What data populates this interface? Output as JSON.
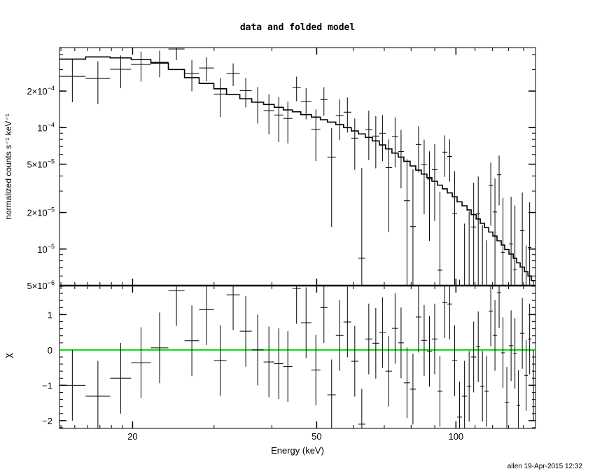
{
  "chart_data": {
    "title": "data and folded model",
    "xlabel": "Energy (keV)",
    "top_panel": {
      "type": "scatter",
      "ylabel": "normalized counts s⁻¹ keV⁻¹",
      "yscale": "log",
      "ylim": [
        5e-06,
        0.000456
      ],
      "yticks": [
        {
          "value": 0.0002,
          "base": "2×10",
          "exp": "−4"
        },
        {
          "value": 0.0001,
          "base": "10",
          "exp": "−4"
        },
        {
          "value": 5e-05,
          "base": "5×10",
          "exp": "−5"
        },
        {
          "value": 2e-05,
          "base": "2×10",
          "exp": "−5"
        },
        {
          "value": 1e-05,
          "base": "10",
          "exp": "−5"
        },
        {
          "value": 5e-06,
          "base": "5×10",
          "exp": "−6"
        }
      ]
    },
    "bottom_panel": {
      "type": "scatter",
      "ylabel": "χ",
      "ylim": [
        -2.22,
        1.82
      ],
      "yticks": [
        {
          "value": 1,
          "label": "1"
        },
        {
          "value": 0,
          "label": "0"
        },
        {
          "value": -1,
          "label": "−1"
        },
        {
          "value": -2,
          "label": "−2"
        }
      ],
      "zero_line_color": "#00e000"
    },
    "xscale": "log",
    "xlim": [
      13.9,
      148.6
    ],
    "xticks": [
      {
        "value": 20,
        "label": "20"
      },
      {
        "value": 50,
        "label": "50"
      },
      {
        "value": 100,
        "label": "100"
      }
    ],
    "energy_edges": [
      13.87,
      15.83,
      17.89,
      19.86,
      21.9,
      23.9,
      25.9,
      27.86,
      29.97,
      31.92,
      34.1,
      36.19,
      38.4,
      40.47,
      42.34,
      44.31,
      46.2,
      48.69,
      50.94,
      52.75,
      55.0,
      57.16,
      59.39,
      61.51,
      63.69,
      65.95,
      68.29,
      70.47,
      72.72,
      75.04,
      77.17,
      79.62,
      81.87,
      84.19,
      86.57,
      88.72,
      91.23,
      93.49,
      95.8,
      98.18,
      100.6,
      103.1,
      105.7,
      107.9,
      110.6,
      112.9,
      115.3,
      117.7,
      120.2,
      122.7,
      125.3,
      127.5,
      130.2,
      133.0,
      135.3,
      137.7,
      140.6,
      143.1,
      145.6,
      148.6
    ],
    "data": [
      0.000264,
      0.000254,
      0.000302,
      0.000331,
      0.000345,
      0.000444,
      0.000279,
      0.00031,
      0.000189,
      0.000279,
      0.000202,
      0.000162,
      0.000138,
      0.000127,
      0.000119,
      0.000214,
      0.000164,
      9.7e-05,
      0.00017,
      5.72e-05,
      0.000125,
      0.000134,
      8.19e-05,
      8.4e-06,
      9.61e-05,
      8.52e-05,
      8.99e-05,
      4.68e-05,
      8.41e-05,
      6.36e-05,
      2.5e-05,
      1.53e-05,
      7.27e-05,
      4.94e-05,
      3.77e-05,
      4.5e-05,
      6.7e-06,
      6.28e-05,
      5.79e-05,
      1.97e-05,
      -1.54e-05,
      -4.8e-06,
      4e-07,
      1.52e-05,
      1.95e-05,
      -3.3e-06,
      -7.2e-06,
      3.36e-05,
      2.02e-05,
      4.09e-05,
      9.4e-06,
      -1.53e-05,
      1.1e-05,
      6.8e-06,
      -1.74e-05,
      1.42e-05,
      -4.3e-06,
      1.03e-05,
      -8.5e-06
    ],
    "data_err": [
      0.000102,
      9.8e-05,
      9.1e-05,
      9.2e-05,
      8.5e-05,
      8.5e-05,
      8e-05,
      6.9e-05,
      6.7e-05,
      5.9e-05,
      5.5e-05,
      5.4e-05,
      5e-05,
      5.1e-05,
      4.5e-05,
      4.9e-05,
      4.7e-05,
      4.4e-05,
      4.5e-05,
      4.2e-05,
      4.6e-05,
      4.3e-05,
      3.7e-05,
      3.8e-05,
      4.2e-05,
      3.9e-05,
      3.7e-05,
      3.3e-05,
      3.7e-05,
      3.2e-05,
      3e-05,
      3e-05,
      3e-05,
      3e-05,
      2.6e-05,
      2.8e-05,
      2.3e-05,
      2.35e-05,
      2.2e-05,
      2.4e-05,
      2.1e-05,
      2.1e-05,
      2e-05,
      2e-05,
      2e-05,
      1.9e-05,
      1.9e-05,
      1.8e-05,
      1.8e-05,
      1.8e-05,
      1.7e-05,
      1.7e-05,
      1.6e-05,
      1.6e-05,
      1.6e-05,
      1.5e-05,
      1.5e-05,
      1.4e-05,
      1.4e-05
    ],
    "model": [
      0.000367,
      0.000382,
      0.000375,
      0.000364,
      0.00034,
      0.000301,
      0.000258,
      0.000231,
      0.000209,
      0.000187,
      0.000173,
      0.000162,
      0.000155,
      0.000147,
      0.00014,
      0.000135,
      0.000128,
      0.000122,
      0.000116,
      0.000111,
      0.000106,
      0.0001,
      9.39e-05,
      8.87e-05,
      8.3e-05,
      7.77e-05,
      7.2e-05,
      6.68e-05,
      6.17e-05,
      5.72e-05,
      5.28e-05,
      4.83e-05,
      4.46e-05,
      4.14e-05,
      3.87e-05,
      3.62e-05,
      3.36e-05,
      3.13e-05,
      2.9e-05,
      2.69e-05,
      2.45e-05,
      2.27e-05,
      2.1e-05,
      1.92e-05,
      1.77e-05,
      1.63e-05,
      1.5e-05,
      1.38e-05,
      1.28e-05,
      1.17e-05,
      1.08e-05,
      9.9e-06,
      9.1e-06,
      8.4e-06,
      7.7e-06,
      7.1e-06,
      6.5e-06,
      6e-06,
      5.5e-06
    ],
    "residuals": [
      -1.0,
      -1.31,
      -0.8,
      -0.36,
      0.06,
      1.68,
      0.26,
      1.14,
      -0.3,
      1.56,
      0.53,
      0.0,
      -0.34,
      -0.39,
      -0.47,
      1.74,
      0.77,
      -0.57,
      1.2,
      -1.27,
      0.41,
      0.79,
      -0.32,
      -2.1,
      0.31,
      0.19,
      0.49,
      -0.6,
      0.61,
      0.2,
      -0.93,
      -1.11,
      0.93,
      0.27,
      -0.04,
      0.31,
      -1.17,
      1.34,
      1.3,
      -0.3,
      -1.9,
      -1.31,
      -1.03,
      -0.2,
      0.09,
      -1.03,
      -1.17,
      1.1,
      0.41,
      1.62,
      -0.08,
      -1.48,
      0.12,
      -0.1,
      -1.57,
      0.47,
      -0.72,
      0.31,
      -1.0
    ]
  },
  "footer": "allen 19-Apr-2015 12:32"
}
